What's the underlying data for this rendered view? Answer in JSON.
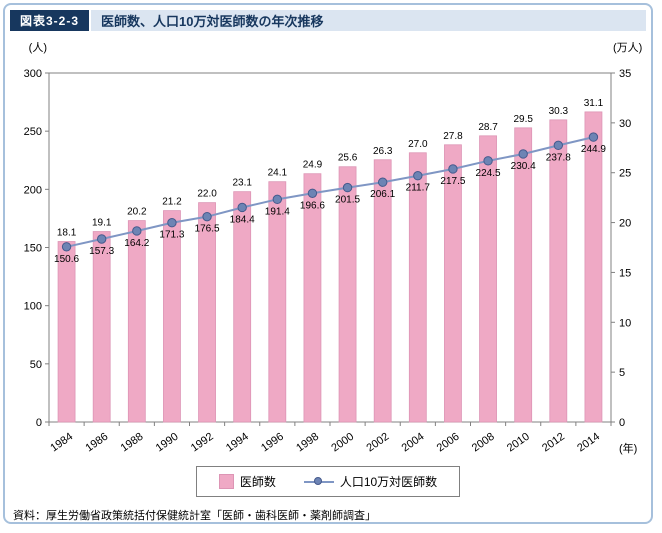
{
  "figure": {
    "tag": "図表3-2-3",
    "title": "医師数、人口10万対医師数の年次推移",
    "source": "資料：厚生労働省政策統括付保健統計室「医師・歯科医師・薬剤師調査」"
  },
  "chart_data": {
    "type": "bar",
    "title": "医師数、人口10万対医師数の年次推移",
    "categories": [
      "1984",
      "1986",
      "1988",
      "1990",
      "1992",
      "1994",
      "1996",
      "1998",
      "2000",
      "2002",
      "2004",
      "2006",
      "2008",
      "2010",
      "2012",
      "2014"
    ],
    "series": [
      {
        "name": "医師数",
        "type": "bar",
        "axis": "right",
        "values": [
          18.1,
          19.1,
          20.2,
          21.2,
          22.0,
          23.1,
          24.1,
          24.9,
          25.6,
          26.3,
          27.0,
          27.8,
          28.7,
          29.5,
          30.3,
          31.1
        ],
        "color": "#efa9c5",
        "border_color": "#dd95b5"
      },
      {
        "name": "人口10万対医師数",
        "type": "line",
        "axis": "left",
        "values": [
          150.6,
          157.3,
          164.2,
          171.3,
          176.5,
          184.4,
          191.4,
          196.6,
          201.5,
          206.1,
          211.7,
          217.5,
          224.5,
          230.4,
          237.8,
          244.9
        ],
        "color": "#7f96c4",
        "marker_fill": "#6d84b4",
        "marker_stroke": "#45598c"
      }
    ],
    "left_axis": {
      "label": "(人)",
      "min": 0,
      "max": 300,
      "step": 50
    },
    "right_axis": {
      "label": "(万人)",
      "min": 0,
      "max": 35,
      "step": 5
    },
    "x_axis_label": "(年)",
    "grid": false,
    "legend_position": "bottom"
  }
}
